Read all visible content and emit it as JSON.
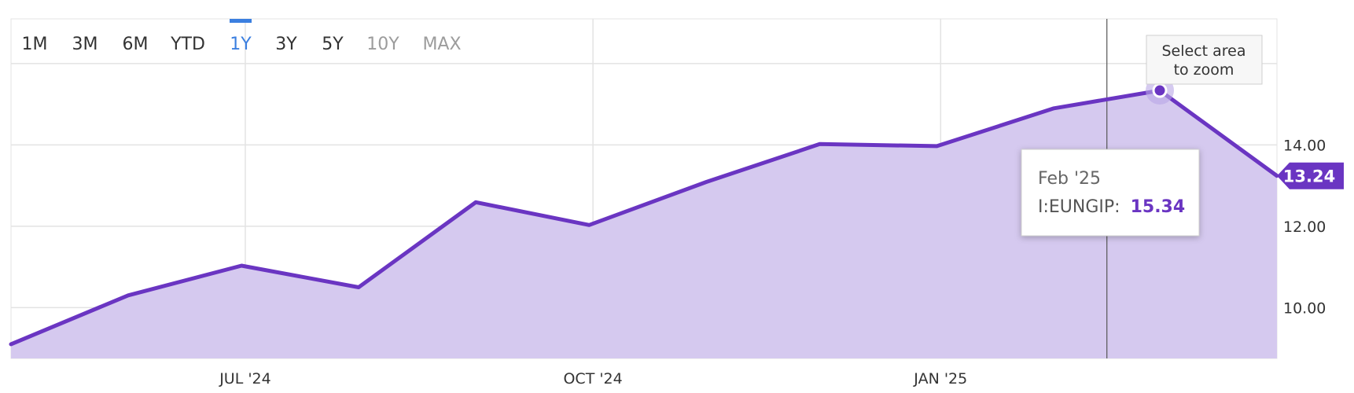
{
  "range_buttons": [
    {
      "label": "1M",
      "state": "enabled"
    },
    {
      "label": "3M",
      "state": "enabled"
    },
    {
      "label": "6M",
      "state": "enabled"
    },
    {
      "label": "YTD",
      "state": "enabled"
    },
    {
      "label": "1Y",
      "state": "active"
    },
    {
      "label": "3Y",
      "state": "enabled"
    },
    {
      "label": "5Y",
      "state": "enabled"
    },
    {
      "label": "10Y",
      "state": "disabled"
    },
    {
      "label": "MAX",
      "state": "disabled"
    }
  ],
  "zoom_hint": {
    "line1": "Select area",
    "line2": "to zoom"
  },
  "tooltip": {
    "date": "Feb '25",
    "series_label": "I:EUNGIP:",
    "value": "15.34"
  },
  "last_value_badge": "13.24",
  "colors": {
    "series": "#6a35c2",
    "area_fill": "#d5c9ef",
    "grid": "#e3e3e3",
    "active_button": "#3b7fe0",
    "disabled_button": "#9c9c9c",
    "text": "#333333"
  },
  "chart_data": {
    "type": "area",
    "x": [
      "2024-04-30",
      "2024-05-31",
      "2024-06-30",
      "2024-07-31",
      "2024-08-31",
      "2024-09-30",
      "2024-10-31",
      "2024-11-30",
      "2024-12-31",
      "2025-01-31",
      "2025-02-28",
      "2025-03-31"
    ],
    "series": [
      {
        "name": "I:EUNGIP",
        "values": [
          9.1,
          10.3,
          11.03,
          10.5,
          12.59,
          12.03,
          13.09,
          14.02,
          13.97,
          14.9,
          15.34,
          13.24
        ]
      }
    ],
    "xticks": [
      {
        "date": "2024-07-01",
        "label": "JUL '24"
      },
      {
        "date": "2024-10-01",
        "label": "OCT '24"
      },
      {
        "date": "2025-01-01",
        "label": "JAN '25"
      }
    ],
    "yticks": [
      "10.00",
      "12.00",
      "14.00"
    ],
    "ylim": [
      8.75,
      17.1
    ],
    "xlim": [
      "2024-04-30",
      "2025-03-31"
    ],
    "crosshair_date": "2025-02-14",
    "highlight_point": {
      "date": "2025-02-28",
      "value": 15.34
    },
    "grid": true,
    "legend": "none"
  }
}
